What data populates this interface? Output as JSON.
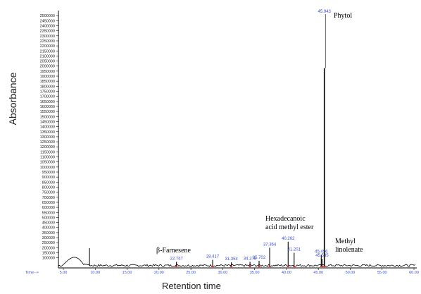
{
  "chart_data": {
    "type": "line",
    "title": "",
    "xlabel": "Retention time",
    "ylabel": "Absorbance",
    "x_axis_name": "Time-->",
    "xlim": [
      3,
      60
    ],
    "ylim": [
      0,
      2550000
    ],
    "x_ticks": [
      "5.00",
      "10.00",
      "15.00",
      "20.00",
      "25.00",
      "30.00",
      "35.00",
      "40.00",
      "45.00",
      "50.00",
      "55.00",
      "60.00"
    ],
    "y_ticks": [
      "100000",
      "150000",
      "200000",
      "250000",
      "300000",
      "350000",
      "400000",
      "450000",
      "500000",
      "550000",
      "600000",
      "650000",
      "700000",
      "750000",
      "800000",
      "850000",
      "900000",
      "950000",
      "1000000",
      "1050000",
      "1100000",
      "1150000",
      "1200000",
      "1250000",
      "1300000",
      "1350000",
      "1400000",
      "1450000",
      "1500000",
      "1550000",
      "1600000",
      "1650000",
      "1700000",
      "1750000",
      "1800000",
      "1850000",
      "1900000",
      "1950000",
      "2000000",
      "2050000",
      "2100000",
      "2150000",
      "2200000",
      "2250000",
      "2300000",
      "2350000",
      "2400000",
      "2450000",
      "2500000"
    ],
    "peaks": [
      {
        "rt": 22.747,
        "label": "22.747",
        "height": 60000
      },
      {
        "rt": 28.417,
        "label": "28.417",
        "height": 80000
      },
      {
        "rt": 31.354,
        "label": "31.354",
        "height": 55000
      },
      {
        "rt": 34.278,
        "label": "34.278",
        "height": 60000
      },
      {
        "rt": 35.702,
        "label": "35.702",
        "height": 70000
      },
      {
        "rt": 37.364,
        "label": "37.364",
        "height": 200000
      },
      {
        "rt": 40.262,
        "label": "40.262",
        "height": 260000
      },
      {
        "rt": 41.201,
        "label": "41.201",
        "height": 150000
      },
      {
        "rt": 45.456,
        "label": "45.456",
        "height": 130000
      },
      {
        "rt": 45.585,
        "label": "45.585",
        "height": 90000
      },
      {
        "rt": 45.943,
        "label": "45.943",
        "height": 1980000
      }
    ],
    "annotations": {
      "farnesene": "β-Farnesene",
      "hexadecanoic_1": "Hexadecanoic",
      "hexadecanoic_2": "acid methyl  ester",
      "phytol": "Phytol",
      "methyl_1": "Methyl",
      "methyl_2": "linolenate"
    }
  }
}
